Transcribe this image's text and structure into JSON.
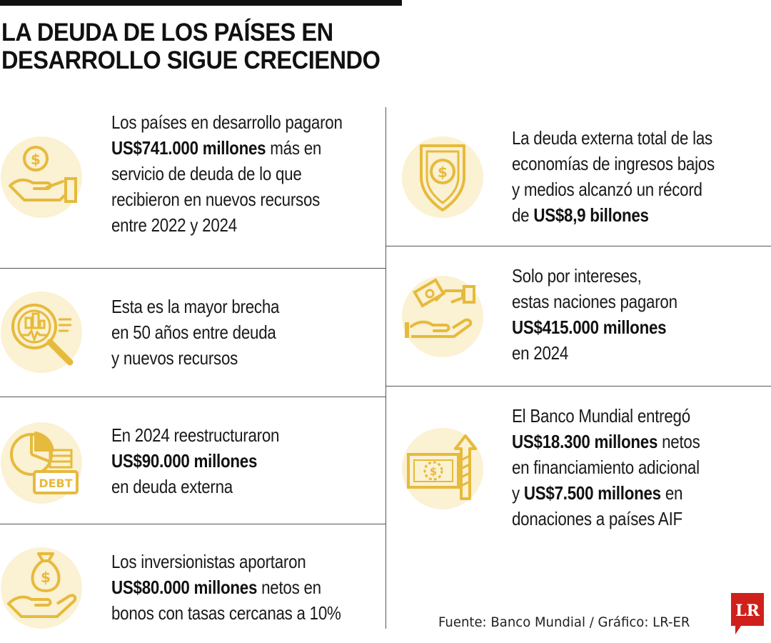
{
  "title": {
    "line1": "LA DEUDA DE LOS PAÍSES EN",
    "line2": "DESARROLLO SIGUE CRECIENDO"
  },
  "colors": {
    "accent": "#E6BA3C",
    "icon_bg": "#FBF1D3",
    "logo_red": "#D0201C"
  },
  "left": [
    {
      "icon": "hand-coin-icon",
      "lines": [
        {
          "pre": "Los países en desarrollo pagaron",
          "bold": "",
          "post": ""
        },
        {
          "pre": "",
          "bold": "US$741.000 millones",
          "post": " más en"
        },
        {
          "pre": "servicio de deuda de lo que",
          "bold": "",
          "post": ""
        },
        {
          "pre": "recibieron en nuevos recursos",
          "bold": "",
          "post": ""
        },
        {
          "pre": "entre 2022 y 2024",
          "bold": "",
          "post": ""
        }
      ]
    },
    {
      "icon": "magnifier-chart-icon",
      "lines": [
        {
          "pre": "Esta es la mayor brecha",
          "bold": "",
          "post": ""
        },
        {
          "pre": "en 50 años entre deuda",
          "bold": "",
          "post": ""
        },
        {
          "pre": "y nuevos recursos",
          "bold": "",
          "post": ""
        }
      ]
    },
    {
      "icon": "debt-pie-icon",
      "icon_label": "DEBT",
      "lines": [
        {
          "pre": "En 2024 reestructuraron",
          "bold": "",
          "post": ""
        },
        {
          "pre": "",
          "bold": "US$90.000 millones",
          "post": ""
        },
        {
          "pre": "en deuda externa",
          "bold": "",
          "post": ""
        }
      ]
    },
    {
      "icon": "money-bag-hand-icon",
      "lines": [
        {
          "pre": "Los inversionistas aportaron",
          "bold": "",
          "post": ""
        },
        {
          "pre": "",
          "bold": "US$80.000 millones",
          "post": " netos en"
        },
        {
          "pre": "bonos con tasas cercanas a 10%",
          "bold": "",
          "post": ""
        }
      ]
    }
  ],
  "right": [
    {
      "icon": "shield-dollar-icon",
      "lines": [
        {
          "pre": "La deuda externa total de las",
          "bold": "",
          "post": ""
        },
        {
          "pre": "economías de ingresos bajos",
          "bold": "",
          "post": ""
        },
        {
          "pre": "y medios alcanzó un récord",
          "bold": "",
          "post": ""
        },
        {
          "pre": "de ",
          "bold": "US$8,9 billones",
          "post": ""
        }
      ]
    },
    {
      "icon": "money-exchange-hands-icon",
      "lines": [
        {
          "pre": "Solo por intereses,",
          "bold": "",
          "post": ""
        },
        {
          "pre": "estas naciones pagaron",
          "bold": "",
          "post": ""
        },
        {
          "pre": "",
          "bold": "US$415.000 millones",
          "post": ""
        },
        {
          "pre": "en 2024",
          "bold": "",
          "post": ""
        }
      ]
    },
    {
      "icon": "banknote-arrow-up-icon",
      "lines": [
        {
          "pre": "El Banco Mundial entregó",
          "bold": "",
          "post": ""
        },
        {
          "pre": "",
          "bold": "US$18.300 millones",
          "post": " netos"
        },
        {
          "pre": "en financiamiento adicional",
          "bold": "",
          "post": ""
        },
        {
          "pre": "y ",
          "bold": "US$7.500 millones",
          "post": " en"
        },
        {
          "pre": "donaciones a países AIF",
          "bold": "",
          "post": ""
        }
      ]
    }
  ],
  "source": "Fuente: Banco Mundial / Gráfico: LR-ER",
  "logo_text": "LR"
}
